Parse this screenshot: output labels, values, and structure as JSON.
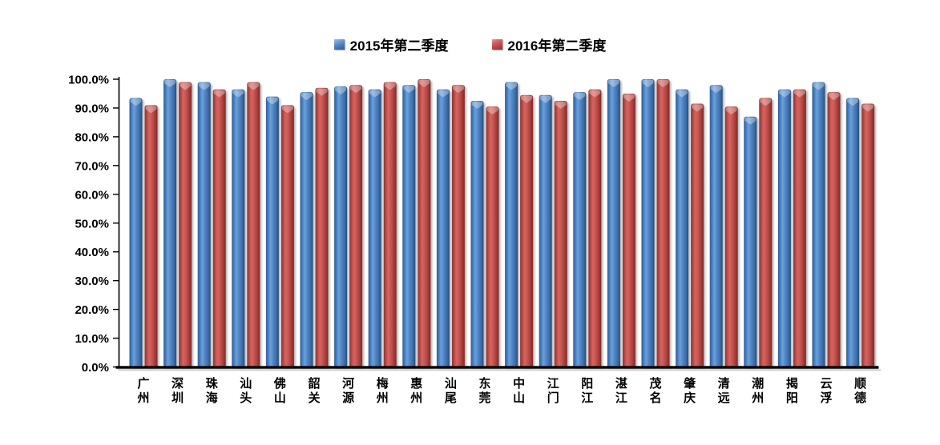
{
  "colors": {
    "bar_blue": "#4f81bd",
    "bar_red": "#c0504d",
    "axis": "#000000",
    "background": "#ffffff"
  },
  "chart_data": {
    "type": "bar",
    "title": "",
    "xlabel": "",
    "ylabel": "",
    "ylim": [
      0,
      100
    ],
    "grid": false,
    "legend_position": "top",
    "y_ticks": [
      "100.0%",
      "90.0%",
      "80.0%",
      "70.0%",
      "60.0%",
      "50.0%",
      "40.0%",
      "30.0%",
      "20.0%",
      "10.0%",
      "0.0%"
    ],
    "categories": [
      "广州",
      "深圳",
      "珠海",
      "汕头",
      "佛山",
      "韶关",
      "河源",
      "梅州",
      "惠州",
      "汕尾",
      "东莞",
      "中山",
      "江门",
      "阳江",
      "湛江",
      "茂名",
      "肇庆",
      "清远",
      "潮州",
      "揭阳",
      "云浮",
      "顺德"
    ],
    "series": [
      {
        "name": "2015年第二季度",
        "color": "#4f81bd",
        "values": [
          93.5,
          100,
          99,
          96.5,
          94,
          95.5,
          97.5,
          96.5,
          98,
          96.5,
          92.5,
          99,
          94.5,
          95.5,
          100,
          100,
          96.5,
          98,
          87,
          96.5,
          99,
          93.5
        ]
      },
      {
        "name": "2016年第二季度",
        "color": "#c0504d",
        "values": [
          91,
          99,
          96.5,
          99,
          91,
          97,
          98,
          99,
          100,
          98,
          90.5,
          94.5,
          92.5,
          96.5,
          95,
          100,
          91.5,
          90.5,
          93.5,
          96.5,
          95.5,
          91.5
        ]
      }
    ]
  }
}
